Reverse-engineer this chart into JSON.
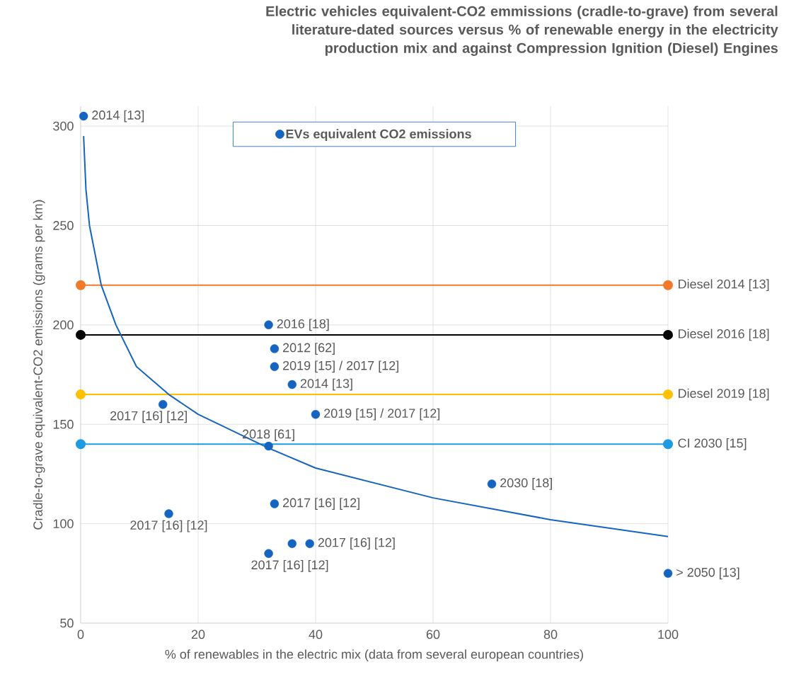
{
  "chart_data": {
    "type": "scatter",
    "title": "Electric vehicles equivalent-CO2 emmissions (cradle-to-grave) from several literature-dated sources versus % of renewable energy in the electricity production mix and against Compression Ignition (Diesel) Engines",
    "xlabel": "% of renewables in the electric mix (data from several european countries)",
    "ylabel": "Cradle-to-grave equivalent-CO2 emissions (grams per  km)",
    "xlim": [
      0,
      100
    ],
    "xticks": [
      0,
      20,
      40,
      60,
      80,
      100
    ],
    "ylim": [
      50,
      310
    ],
    "yticks": [
      50,
      100,
      150,
      200,
      250,
      300
    ],
    "grid": true,
    "legend": "top",
    "series": [
      {
        "name": "EVs equivalent CO2 emissions",
        "color": "#1565c0",
        "marker": "circle",
        "x": [
          0.5,
          32,
          33,
          33,
          36,
          14,
          40,
          32,
          33,
          15,
          36,
          39,
          32,
          70,
          100
        ],
        "values": [
          305,
          200,
          188,
          179,
          170,
          160,
          155,
          139,
          110,
          105,
          90,
          90,
          85,
          120,
          75
        ]
      },
      {
        "name": "Diesel 2014 [13]",
        "type": "line",
        "color": "#f07a2a",
        "marker": "circle",
        "x": [
          0,
          100
        ],
        "values": [
          220,
          220
        ]
      },
      {
        "name": "Diesel 2016 [18]",
        "type": "line",
        "color": "#000000",
        "marker": "circle",
        "x": [
          0,
          100
        ],
        "values": [
          195,
          195
        ]
      },
      {
        "name": "Diesel 2019 [18]",
        "type": "line",
        "color": "#ffc000",
        "marker": "circle",
        "x": [
          0,
          100
        ],
        "values": [
          165,
          165
        ]
      },
      {
        "name": "CI 2030 [15]",
        "type": "line",
        "color": "#1e9be0",
        "marker": "circle",
        "x": [
          0,
          100
        ],
        "values": [
          140,
          140
        ]
      },
      {
        "type": "line",
        "color": "#1565c0",
        "marker": "none",
        "x": [
          0.5,
          0.9,
          1.5,
          3.5,
          6,
          9.5,
          15,
          20,
          32,
          40,
          60,
          80,
          100
        ],
        "values": [
          295,
          268,
          250,
          220,
          200,
          179,
          165,
          155,
          138,
          128,
          113,
          102,
          93.5
        ]
      }
    ],
    "annotations": [
      {
        "text": "2014 [13]",
        "x": 0.5,
        "y": 305
      },
      {
        "text": "2016 [18]",
        "x": 32,
        "y": 200
      },
      {
        "text": "2012 [62]",
        "x": 33,
        "y": 188
      },
      {
        "text": "2019  [15] / 2017  [12]",
        "x": 33,
        "y": 179
      },
      {
        "text": "2014 [13]",
        "x": 36,
        "y": 170
      },
      {
        "text": "2017 [16] [12]",
        "x": 14,
        "y": 160
      },
      {
        "text": "2019  [15] / 2017  [12]",
        "x": 40,
        "y": 155
      },
      {
        "text": "2018 [61]",
        "x": 32,
        "y": 139
      },
      {
        "text": "2017 [16] [12]",
        "x": 33,
        "y": 110
      },
      {
        "text": "2017 [16] [12]",
        "x": 15,
        "y": 105
      },
      {
        "text": "2017 [16] [12]",
        "x": 39,
        "y": 90
      },
      {
        "text": "2017 [16] [12]",
        "x": 32,
        "y": 85
      },
      {
        "text": "2030 [18]",
        "x": 70,
        "y": 120
      },
      {
        "text": "> 2050  [13]",
        "x": 100,
        "y": 75
      }
    ]
  }
}
